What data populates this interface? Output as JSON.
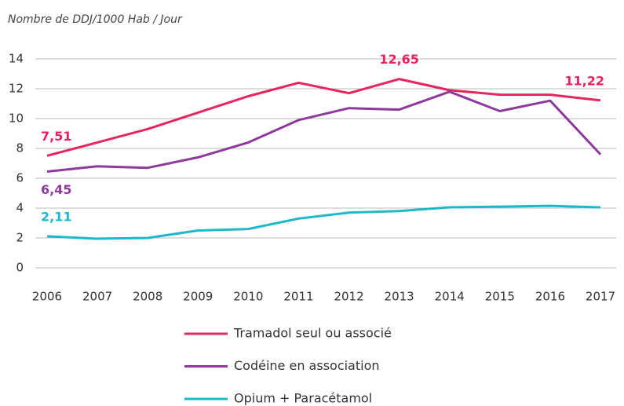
{
  "chart_data": {
    "type": "line",
    "y_axis_label": "Nombre de DDJ/1000 Hab / Jour",
    "categories": [
      "2006",
      "2007",
      "2008",
      "2009",
      "2010",
      "2011",
      "2012",
      "2013",
      "2014",
      "2015",
      "2016",
      "2017"
    ],
    "series": [
      {
        "name": "Tramadol seul ou associé",
        "color": "#e8245f",
        "values": [
          7.51,
          8.4,
          9.3,
          10.4,
          11.5,
          12.4,
          11.7,
          12.65,
          11.9,
          11.6,
          11.6,
          11.22
        ],
        "value_labels": [
          "7,51",
          null,
          null,
          null,
          null,
          null,
          null,
          "12,65",
          null,
          null,
          null,
          "11,22"
        ]
      },
      {
        "name": "Codéine en association",
        "color": "#8e3a9c",
        "values": [
          6.45,
          6.8,
          6.7,
          7.4,
          8.4,
          9.9,
          10.7,
          10.6,
          11.8,
          10.5,
          11.2,
          7.6
        ],
        "value_labels": [
          "6,45",
          null,
          null,
          null,
          null,
          null,
          null,
          null,
          null,
          null,
          null,
          null
        ]
      },
      {
        "name": "Opium + Paracétamol",
        "color": "#1fb8c9",
        "values": [
          2.11,
          1.95,
          2.0,
          2.5,
          2.6,
          3.3,
          3.7,
          3.8,
          4.05,
          4.1,
          4.15,
          4.05
        ],
        "value_labels": [
          "2,11",
          null,
          null,
          null,
          null,
          null,
          null,
          null,
          null,
          null,
          null,
          null
        ]
      }
    ],
    "ylim": [
      0,
      14
    ],
    "yticks": [
      0,
      2,
      4,
      6,
      8,
      10,
      12,
      14
    ],
    "grid": true
  }
}
